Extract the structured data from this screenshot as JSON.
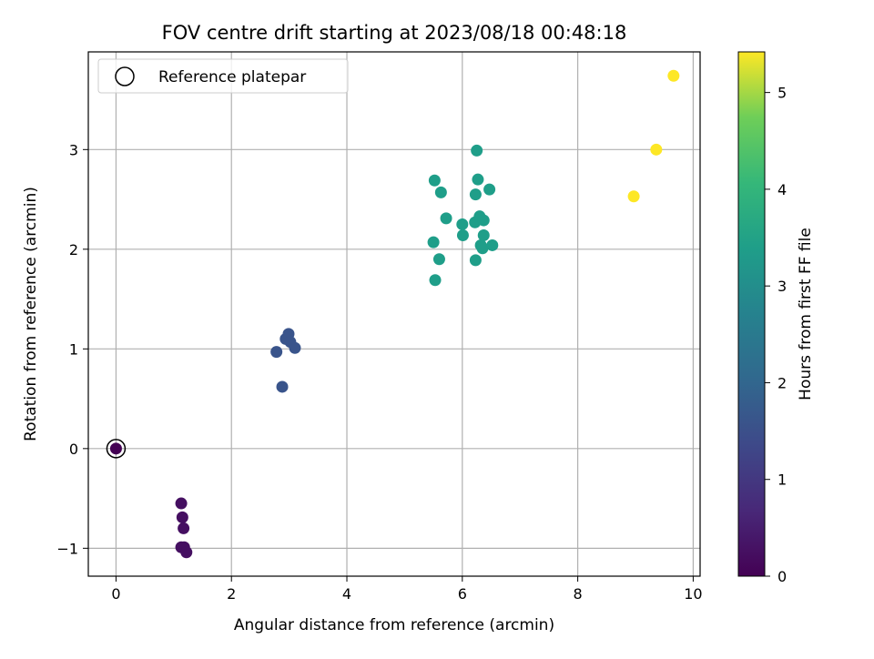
{
  "chart_data": {
    "type": "scatter",
    "title": "FOV centre drift starting at 2023/08/18 00:48:18",
    "xlabel": "Angular distance from reference (arcmin)",
    "ylabel": "Rotation from reference (arcmin)",
    "xlim": [
      -0.48,
      10.12
    ],
    "ylim": [
      -1.28,
      3.98
    ],
    "xticks": [
      0,
      2,
      4,
      6,
      8,
      10
    ],
    "yticks": [
      -1,
      0,
      1,
      2,
      3
    ],
    "grid": true,
    "legend": {
      "position": "top-left",
      "entries": [
        "Reference platepar"
      ]
    },
    "reference_point": {
      "x": 0,
      "y": 0,
      "hours": 0.0
    },
    "colorbar": {
      "label": "Hours from first FF file",
      "range": [
        0,
        5.42
      ],
      "ticks": [
        0,
        1,
        2,
        3,
        4,
        5
      ],
      "colormap": "viridis"
    },
    "points": [
      {
        "x": 1.13,
        "y": -0.55,
        "hours": 0.25
      },
      {
        "x": 1.15,
        "y": -0.69,
        "hours": 0.25
      },
      {
        "x": 1.17,
        "y": -0.8,
        "hours": 0.25
      },
      {
        "x": 1.13,
        "y": -0.99,
        "hours": 0.25
      },
      {
        "x": 1.18,
        "y": -0.99,
        "hours": 0.25
      },
      {
        "x": 1.22,
        "y": -1.04,
        "hours": 0.25
      },
      {
        "x": 2.78,
        "y": 0.97,
        "hours": 1.6
      },
      {
        "x": 2.88,
        "y": 0.62,
        "hours": 1.6
      },
      {
        "x": 2.94,
        "y": 1.1,
        "hours": 1.6
      },
      {
        "x": 2.99,
        "y": 1.15,
        "hours": 1.6
      },
      {
        "x": 3.02,
        "y": 1.07,
        "hours": 1.6
      },
      {
        "x": 3.1,
        "y": 1.01,
        "hours": 1.6
      },
      {
        "x": 5.5,
        "y": 2.07,
        "hours": 3.4
      },
      {
        "x": 5.52,
        "y": 2.69,
        "hours": 3.4
      },
      {
        "x": 5.53,
        "y": 1.69,
        "hours": 3.4
      },
      {
        "x": 5.6,
        "y": 1.9,
        "hours": 3.4
      },
      {
        "x": 5.63,
        "y": 2.57,
        "hours": 3.4
      },
      {
        "x": 5.72,
        "y": 2.31,
        "hours": 3.4
      },
      {
        "x": 6.0,
        "y": 2.25,
        "hours": 3.4
      },
      {
        "x": 6.01,
        "y": 2.14,
        "hours": 3.4
      },
      {
        "x": 6.22,
        "y": 2.27,
        "hours": 3.4
      },
      {
        "x": 6.23,
        "y": 2.55,
        "hours": 3.4
      },
      {
        "x": 6.23,
        "y": 1.89,
        "hours": 3.4
      },
      {
        "x": 6.25,
        "y": 2.99,
        "hours": 3.4
      },
      {
        "x": 6.27,
        "y": 2.7,
        "hours": 3.4
      },
      {
        "x": 6.3,
        "y": 2.33,
        "hours": 3.4
      },
      {
        "x": 6.32,
        "y": 2.04,
        "hours": 3.4
      },
      {
        "x": 6.35,
        "y": 2.01,
        "hours": 3.4
      },
      {
        "x": 6.37,
        "y": 2.14,
        "hours": 3.4
      },
      {
        "x": 6.37,
        "y": 2.29,
        "hours": 3.4
      },
      {
        "x": 6.47,
        "y": 2.6,
        "hours": 3.4
      },
      {
        "x": 6.52,
        "y": 2.04,
        "hours": 3.4
      },
      {
        "x": 8.97,
        "y": 2.53,
        "hours": 5.42
      },
      {
        "x": 9.36,
        "y": 3.0,
        "hours": 5.42
      },
      {
        "x": 9.66,
        "y": 3.74,
        "hours": 5.42
      }
    ]
  }
}
